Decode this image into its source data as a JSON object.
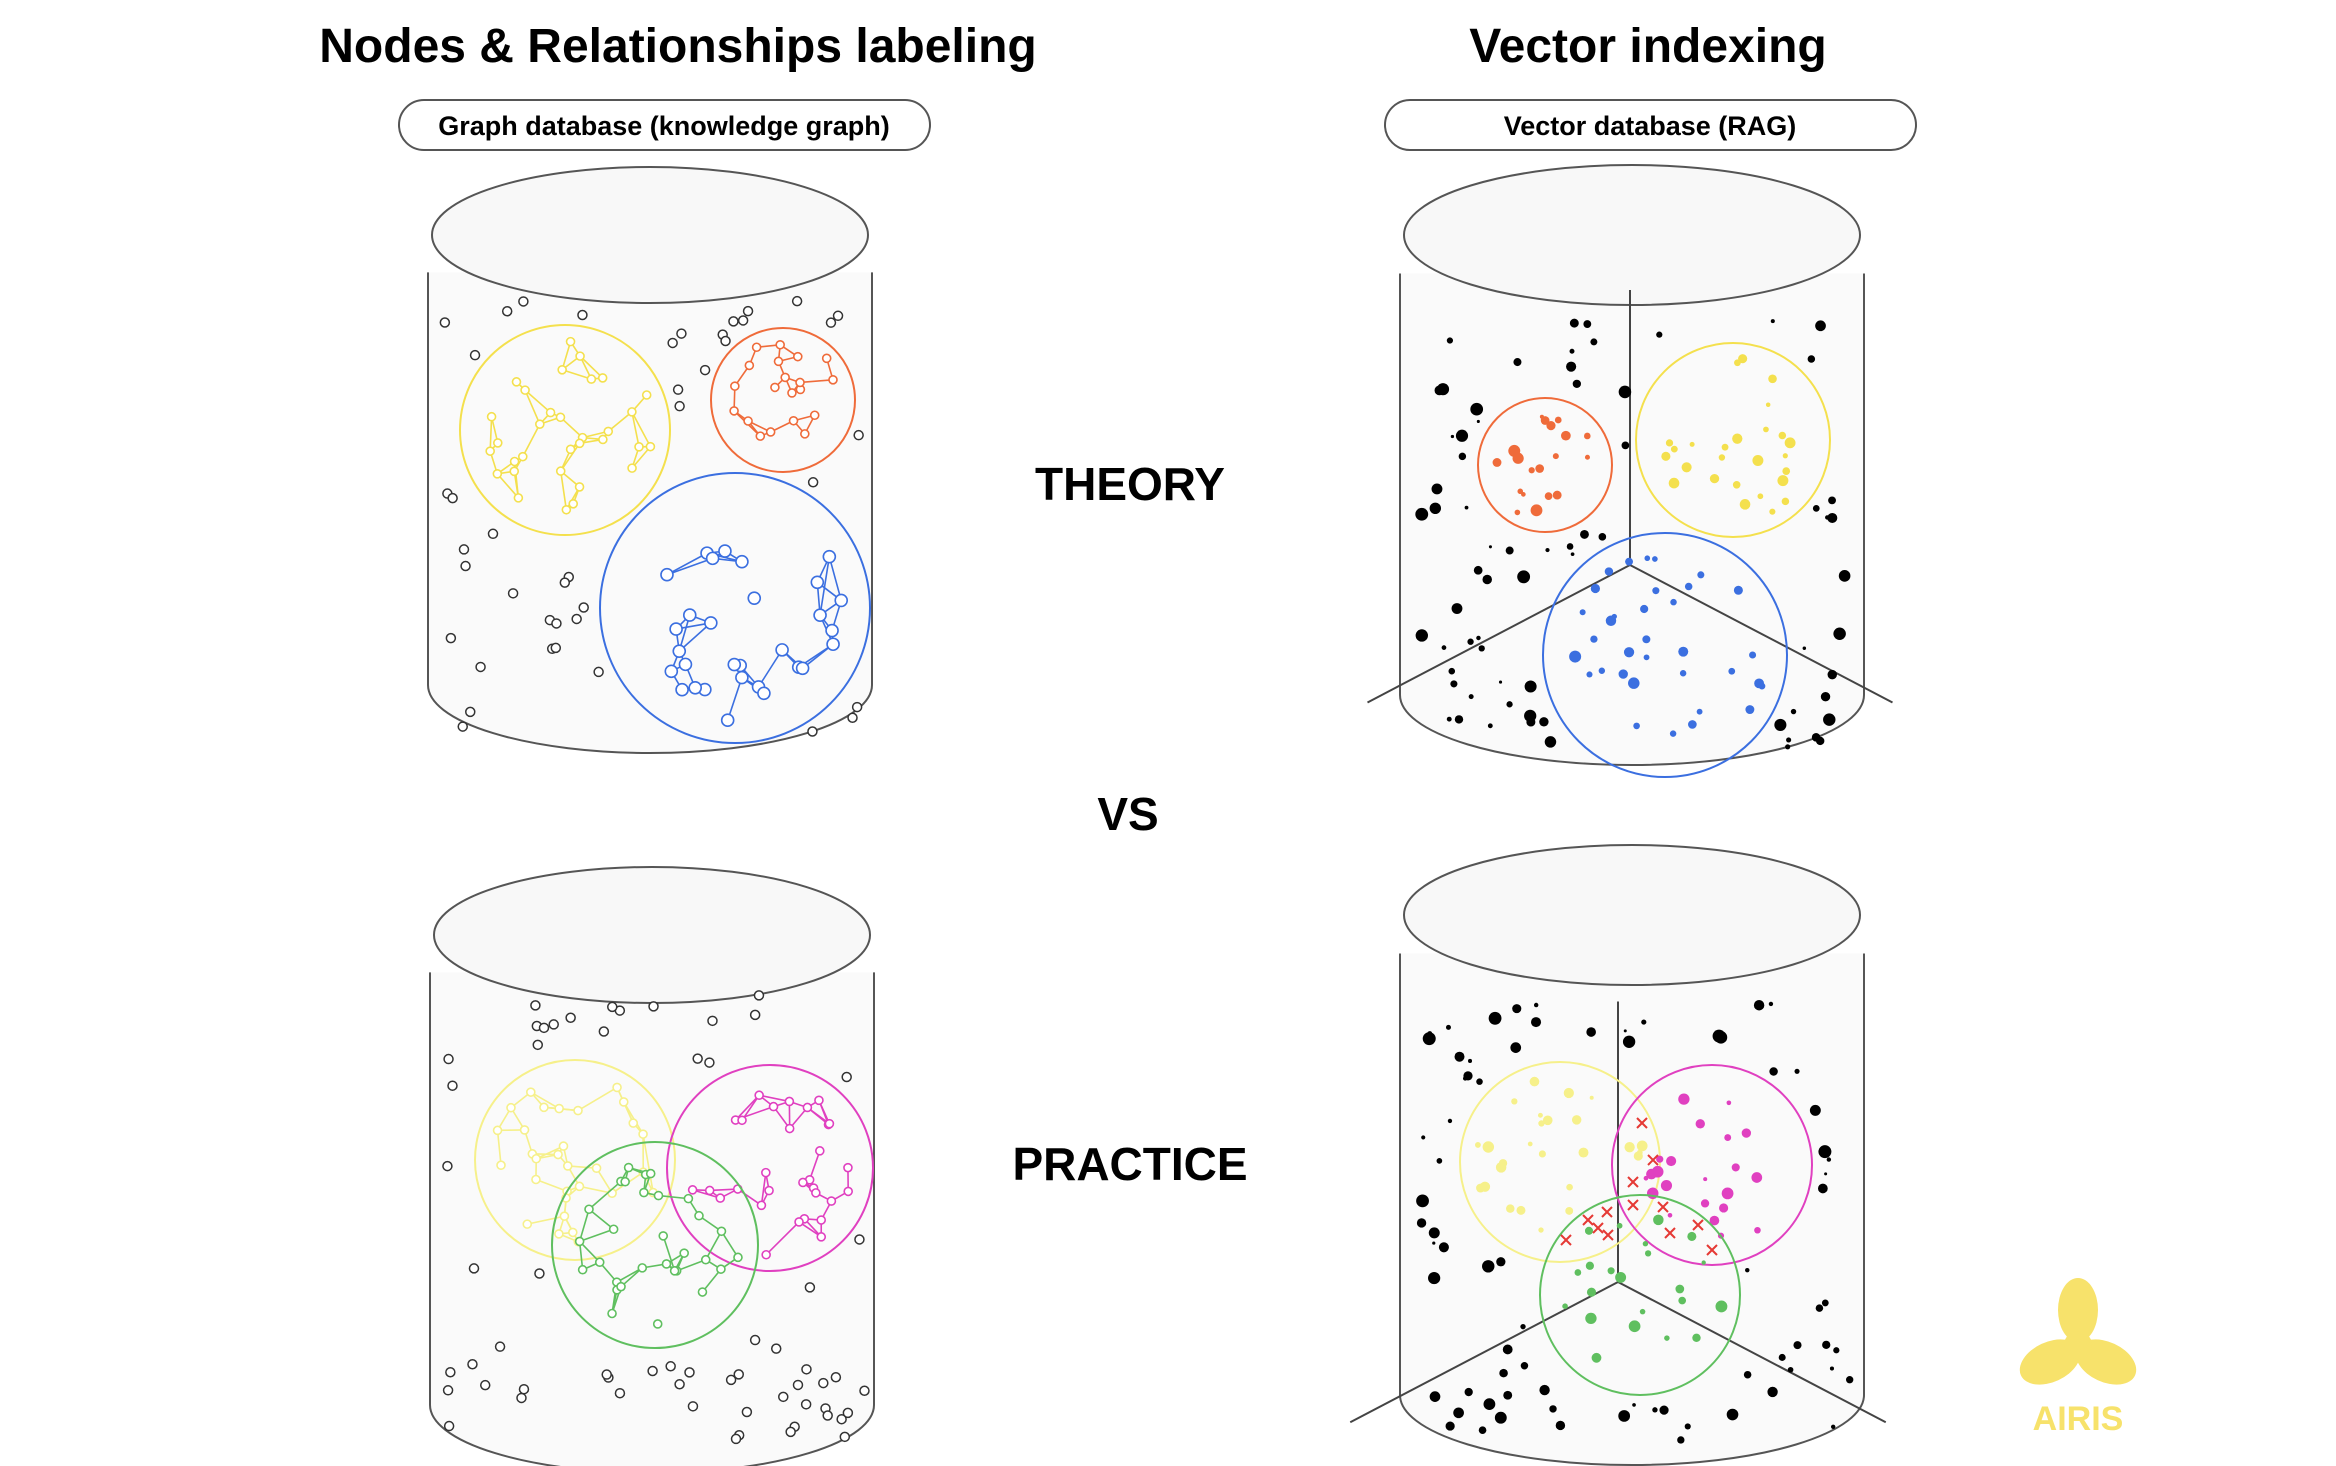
{
  "left": {
    "title": "Nodes & Relationships labeling",
    "pill": "Graph database (knowledge graph)"
  },
  "right": {
    "title": "Vector indexing",
    "pill": "Vector database (RAG)"
  },
  "center": {
    "theory": "THEORY",
    "vs": "VS",
    "practice": "PRACTICE"
  },
  "logo": {
    "text": "AIRIS",
    "color": "#f7e26b"
  },
  "colors": {
    "yellow": "#f4e04d",
    "orange": "#ef6b3a",
    "blue": "#3b6fe0",
    "pink": "#e040c0",
    "green": "#5fbf5f",
    "lightYellow": "#f6f08a",
    "red": "#e53935"
  }
}
